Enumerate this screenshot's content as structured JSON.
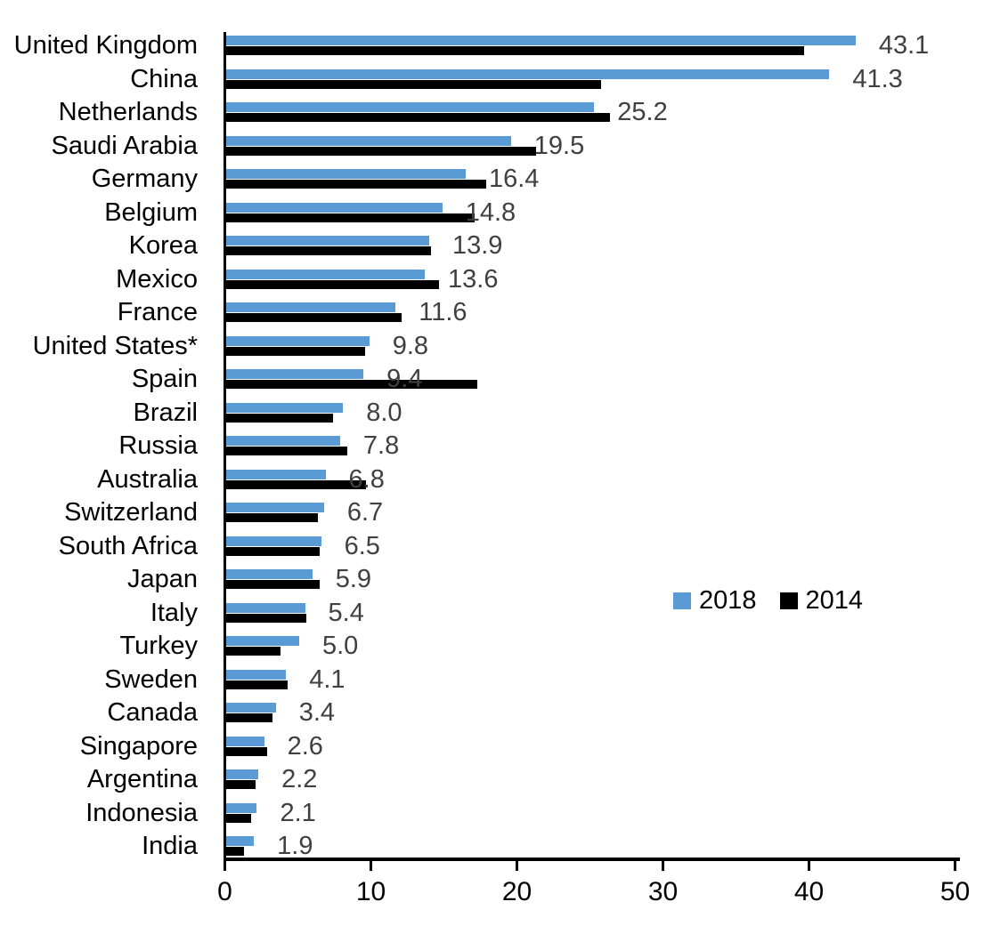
{
  "chart_data": {
    "type": "bar",
    "orientation": "horizontal",
    "title": "",
    "xlabel": "",
    "ylabel": "",
    "categories": [
      "United Kingdom",
      "China",
      "Netherlands",
      "Saudi Arabia",
      "Germany",
      "Belgium",
      "Korea",
      "Mexico",
      "France",
      "United States*",
      "Spain",
      "Brazil",
      "Russia",
      "Australia",
      "Switzerland",
      "South Africa",
      "Japan",
      "Italy",
      "Turkey",
      "Sweden",
      "Canada",
      "Singapore",
      "Argentina",
      "Indonesia",
      "India"
    ],
    "series": [
      {
        "name": "2018",
        "color": "#5B9BD5",
        "values": [
          43.1,
          41.3,
          25.2,
          19.5,
          16.4,
          14.8,
          13.9,
          13.6,
          11.6,
          9.8,
          9.4,
          8.0,
          7.8,
          6.8,
          6.7,
          6.5,
          5.9,
          5.4,
          5.0,
          4.1,
          3.4,
          2.6,
          2.2,
          2.1,
          1.9
        ]
      },
      {
        "name": "2014",
        "color": "#000000",
        "values": [
          39.6,
          25.7,
          26.3,
          21.2,
          17.8,
          17.0,
          14.0,
          14.6,
          12.0,
          9.5,
          17.2,
          7.3,
          8.3,
          9.6,
          6.3,
          6.4,
          6.4,
          5.5,
          3.7,
          4.2,
          3.2,
          2.8,
          2.0,
          1.7,
          1.2
        ]
      }
    ],
    "data_labels": {
      "labels_shown_for_series": "2018",
      "values": [
        "43.1",
        "41.3",
        "25.2",
        "19.5",
        "16.4",
        "14.8",
        "13.9",
        "13.6",
        "11.6",
        "9.8",
        "9.4",
        "8.0",
        "7.8",
        "6.8",
        "6.7",
        "6.5",
        "5.9",
        "5.4",
        "5.0",
        "4.1",
        "3.4",
        "2.6",
        "2.2",
        "2.1",
        "1.9"
      ],
      "color": "#404040"
    },
    "x_axis": {
      "min": 0,
      "max": 50,
      "ticks": [
        0,
        10,
        20,
        30,
        40,
        50
      ]
    },
    "legend": {
      "position": "middle-right",
      "entries": [
        "2018",
        "2014"
      ]
    },
    "grid": "off",
    "axis_color": "#000000"
  }
}
